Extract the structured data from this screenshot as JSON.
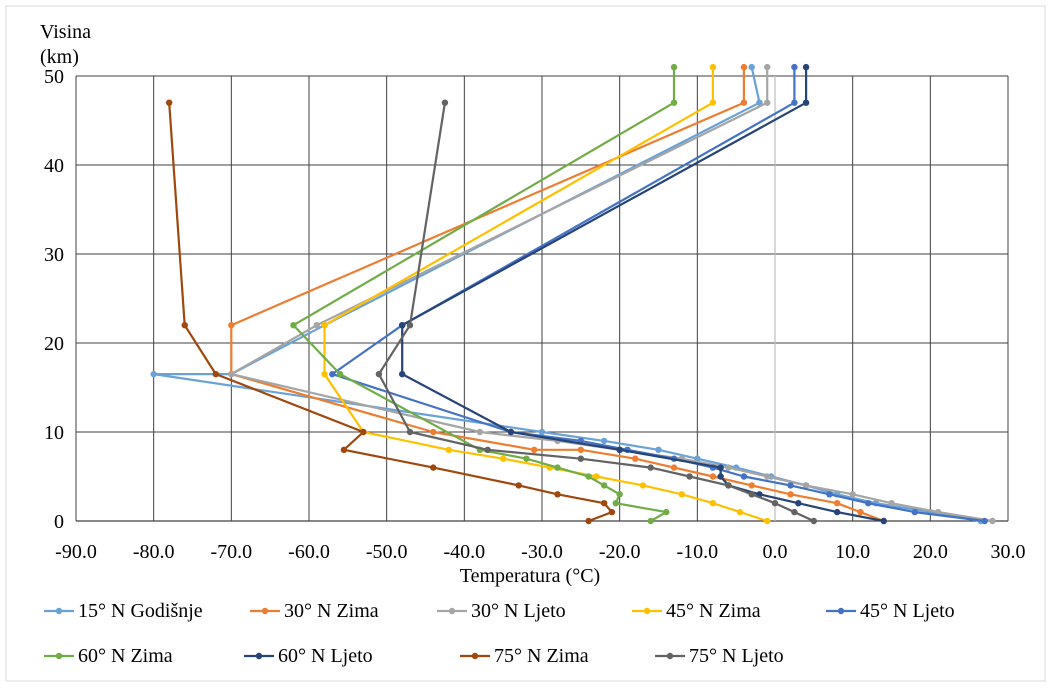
{
  "chart_data": {
    "type": "line",
    "title": "",
    "xlabel": "Temperatura  (°C)",
    "ylabel": "Visina (km)",
    "ylabel_lines": [
      "Visina",
      "(km)"
    ],
    "xlim": [
      -90,
      30
    ],
    "ylim": [
      0,
      50
    ],
    "xticks": [
      -90,
      -80,
      -70,
      -60,
      -50,
      -40,
      -30,
      -20,
      -10,
      0,
      10,
      20,
      30
    ],
    "xtick_labels": [
      "-90.0",
      "-80.0",
      "-70.0",
      "-60.0",
      "-50.0",
      "-40.0",
      "-30.0",
      "-20.0",
      "-10.0",
      "0.0",
      "10.0",
      "20.0",
      "30.0"
    ],
    "yticks": [
      0,
      10,
      20,
      30,
      40,
      50
    ],
    "ytick_labels": [
      "0",
      "10",
      "20",
      "30",
      "40",
      "50"
    ],
    "grid": true,
    "legend_position": "bottom",
    "series": [
      {
        "name": "15° N Godišnje",
        "color": "#6aa2d7",
        "points": [
          [
            26.5,
            0
          ],
          [
            20,
            1
          ],
          [
            13,
            2
          ],
          [
            8,
            3
          ],
          [
            4,
            4
          ],
          [
            -0.5,
            5
          ],
          [
            -5,
            6
          ],
          [
            -10,
            7
          ],
          [
            -15,
            8
          ],
          [
            -22,
            9
          ],
          [
            -30,
            10
          ],
          [
            -80,
            16.5
          ],
          [
            -70,
            16.5
          ],
          [
            -58,
            22
          ],
          [
            -2,
            47
          ],
          [
            -3,
            51
          ]
        ]
      },
      {
        "name": "30° N  Zima",
        "color": "#ed7d31",
        "points": [
          [
            14,
            0
          ],
          [
            11,
            1
          ],
          [
            8,
            2
          ],
          [
            2,
            3
          ],
          [
            -3,
            4
          ],
          [
            -8,
            5
          ],
          [
            -13,
            6
          ],
          [
            -18,
            7
          ],
          [
            -25,
            8
          ],
          [
            -31,
            8
          ],
          [
            -44,
            10
          ],
          [
            -70,
            16.5
          ],
          [
            -70,
            22
          ],
          [
            -4,
            47
          ],
          [
            -4,
            51
          ]
        ]
      },
      {
        "name": "30° N Ljeto",
        "color": "#a5a5a5",
        "points": [
          [
            28,
            0
          ],
          [
            21,
            1
          ],
          [
            15,
            2
          ],
          [
            10,
            3
          ],
          [
            4,
            4
          ],
          [
            -1,
            5
          ],
          [
            -6,
            6
          ],
          [
            -12,
            7
          ],
          [
            -20,
            8
          ],
          [
            -28,
            9
          ],
          [
            -38,
            10
          ],
          [
            -70,
            16.5
          ],
          [
            -59,
            22
          ],
          [
            -1,
            47
          ],
          [
            -1,
            51
          ]
        ]
      },
      {
        "name": "45° N Zima",
        "color": "#ffc000",
        "points": [
          [
            -1,
            0
          ],
          [
            -4.5,
            1
          ],
          [
            -8,
            2
          ],
          [
            -12,
            3
          ],
          [
            -17,
            4
          ],
          [
            -23,
            5
          ],
          [
            -29,
            6
          ],
          [
            -35,
            7
          ],
          [
            -42,
            8
          ],
          [
            -53,
            10
          ],
          [
            -58,
            16.5
          ],
          [
            -58,
            22
          ],
          [
            -8,
            47
          ],
          [
            -8,
            51
          ]
        ]
      },
      {
        "name": "45° N Ljeto",
        "color": "#4472c4",
        "points": [
          [
            27,
            0
          ],
          [
            18,
            1
          ],
          [
            12,
            2
          ],
          [
            7,
            3
          ],
          [
            2,
            4
          ],
          [
            -4,
            5
          ],
          [
            -8,
            6
          ],
          [
            -13,
            7
          ],
          [
            -19,
            8
          ],
          [
            -25,
            9
          ],
          [
            -34,
            10
          ],
          [
            -57,
            16.5
          ],
          [
            -48,
            22
          ],
          [
            2.5,
            47
          ],
          [
            2.5,
            51
          ]
        ]
      },
      {
        "name": "60° N Zima",
        "color": "#70ad47",
        "points": [
          [
            -16,
            0
          ],
          [
            -14,
            1
          ],
          [
            -20.5,
            2
          ],
          [
            -20,
            3
          ],
          [
            -22,
            4
          ],
          [
            -24,
            5
          ],
          [
            -28,
            6
          ],
          [
            -32,
            7
          ],
          [
            -38,
            8
          ],
          [
            -56,
            16.5
          ],
          [
            -62,
            22
          ],
          [
            -13,
            47
          ],
          [
            -13,
            51
          ]
        ]
      },
      {
        "name": "60° N Ljeto",
        "color": "#264478",
        "points": [
          [
            14,
            0
          ],
          [
            8,
            1
          ],
          [
            3,
            2
          ],
          [
            -2,
            3
          ],
          [
            -6,
            4
          ],
          [
            -7,
            5
          ],
          [
            -7,
            6
          ],
          [
            -20,
            8
          ],
          [
            -34,
            10
          ],
          [
            -48,
            16.5
          ],
          [
            -48,
            22
          ],
          [
            4,
            47
          ],
          [
            4,
            51
          ]
        ]
      },
      {
        "name": "75° N Zima",
        "color": "#9e480e",
        "points": [
          [
            -24,
            0
          ],
          [
            -21,
            1
          ],
          [
            -22,
            2
          ],
          [
            -28,
            3
          ],
          [
            -33,
            4
          ],
          [
            -44,
            6
          ],
          [
            -55.5,
            8
          ],
          [
            -53,
            10
          ],
          [
            -72,
            16.5
          ],
          [
            -76,
            22
          ],
          [
            -78,
            47
          ]
        ]
      },
      {
        "name": "75° N Ljeto",
        "color": "#636363",
        "points": [
          [
            5,
            0
          ],
          [
            2.5,
            1
          ],
          [
            0,
            2
          ],
          [
            -3,
            3
          ],
          [
            -6,
            4
          ],
          [
            -11,
            5
          ],
          [
            -16,
            6
          ],
          [
            -25,
            7
          ],
          [
            -37,
            8
          ],
          [
            -47,
            10
          ],
          [
            -51,
            16.5
          ],
          [
            -47,
            22
          ],
          [
            -42.5,
            47
          ]
        ]
      }
    ]
  }
}
